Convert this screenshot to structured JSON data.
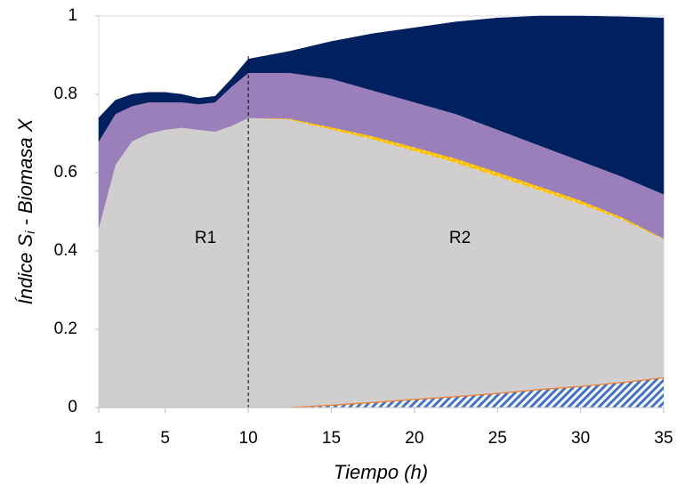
{
  "chart_data": {
    "type": "stacked_area",
    "x_label": "Tiempo (h)",
    "y_label": {
      "main": "Índice S",
      "sub": "i",
      "rest": " - Biomasa X"
    },
    "annotations": [
      "R1",
      "R2"
    ],
    "vline": 10,
    "x": [
      1,
      2,
      3,
      4,
      5,
      6,
      7,
      8,
      9,
      10,
      12.5,
      15,
      17.5,
      20,
      22.5,
      25,
      27.5,
      30,
      32.5,
      35
    ],
    "series": [
      {
        "color": "#4472c4",
        "hatch": true,
        "values": [
          0,
          0,
          0,
          0,
          0,
          0,
          0,
          0,
          0,
          0,
          0,
          0.005,
          0.012,
          0.02,
          0.027,
          0.035,
          0.045,
          0.053,
          0.063,
          0.075
        ]
      },
      {
        "color": "#ed7d31",
        "values": [
          0,
          0,
          0,
          0,
          0,
          0,
          0,
          0,
          0,
          0,
          0.002,
          0.003,
          0.003,
          0.003,
          0.003,
          0.003,
          0.003,
          0.003,
          0.003,
          0.003
        ]
      },
      {
        "color": "#d0cece",
        "values": [
          0.46,
          0.62,
          0.68,
          0.7,
          0.71,
          0.715,
          0.71,
          0.705,
          0.72,
          0.74,
          0.733,
          0.702,
          0.67,
          0.632,
          0.595,
          0.552,
          0.507,
          0.464,
          0.414,
          0.352
        ]
      },
      {
        "color": "#ffc000",
        "dotted": true,
        "values": [
          0,
          0,
          0,
          0,
          0,
          0,
          0,
          0,
          0,
          0,
          0.003,
          0.006,
          0.008,
          0.01,
          0.011,
          0.011,
          0.01,
          0.009,
          0.006,
          0.002
        ]
      },
      {
        "color": "#9b7fbb",
        "values": [
          0.22,
          0.13,
          0.09,
          0.08,
          0.07,
          0.065,
          0.065,
          0.075,
          0.1,
          0.115,
          0.117,
          0.124,
          0.117,
          0.115,
          0.114,
          0.109,
          0.105,
          0.101,
          0.104,
          0.113
        ]
      },
      {
        "color": "#002060",
        "values": [
          0.06,
          0.035,
          0.03,
          0.025,
          0.025,
          0.02,
          0.015,
          0.015,
          0.02,
          0.035,
          0.055,
          0.095,
          0.145,
          0.19,
          0.235,
          0.285,
          0.33,
          0.37,
          0.408,
          0.45
        ]
      }
    ],
    "xlim": [
      1,
      35
    ],
    "ylim": [
      0,
      1
    ],
    "xticks": [
      1,
      5,
      10,
      15,
      20,
      25,
      30,
      35
    ],
    "yticks": [
      0,
      0.2,
      0.4,
      0.6,
      0.8,
      1
    ]
  }
}
